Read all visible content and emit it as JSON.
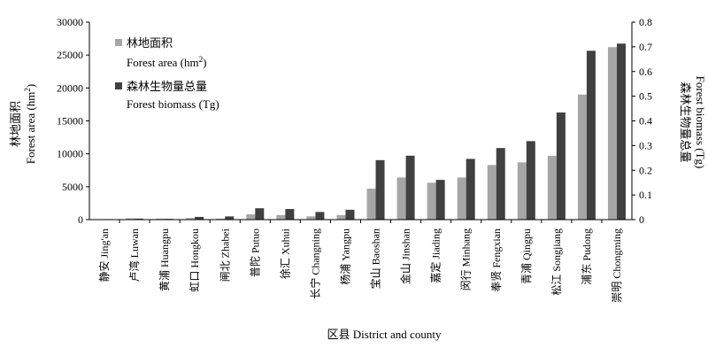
{
  "chart_data": {
    "type": "bar",
    "xlabel": "区县 District and county",
    "ylabel_left": [
      "林地面积",
      "Forest area (hm²)"
    ],
    "ylabel_right": [
      "森林生物量总量",
      "Forest biomass (Tg)"
    ],
    "ylim_left": [
      0,
      30000
    ],
    "yticks_left": [
      "0",
      "5000",
      "10000",
      "15000",
      "20000",
      "25000",
      "30000"
    ],
    "ylim_right": [
      0,
      0.8
    ],
    "yticks_right": [
      "0",
      "0.1",
      "0.2",
      "0.3",
      "0.4",
      "0.5",
      "0.6",
      "0.7",
      "0.8"
    ],
    "grid": false,
    "legend_position": "top-left",
    "categories": [
      "静安 Jing'an",
      "卢湾 Luwan",
      "黄浦 Huangpu",
      "虹口 Hongkou",
      "闸北 Zhabei",
      "普陀 Putuo",
      "徐汇 Xuhui",
      "长宁 Changning",
      "杨浦 Yangpu",
      "宝山 Baoshan",
      "金山 Jinshan",
      "嘉定 Jiading",
      "闵行 Minhang",
      "奉贤 Fengxian",
      "青浦 Qingpu",
      "松江 Songjiang",
      "浦东 Pudong",
      "崇明 Chongming"
    ],
    "series": [
      {
        "name": "林地面积",
        "name_en": "Forest area (hm²)",
        "axis": "left",
        "color": "#a6a6a6",
        "values": [
          20,
          200,
          150,
          250,
          150,
          800,
          700,
          500,
          700,
          4700,
          6400,
          5600,
          6400,
          8300,
          8700,
          9700,
          19000,
          26200
        ]
      },
      {
        "name": "森林生物量总量",
        "name_en": "Forest biomass (Tg)",
        "axis": "right",
        "color": "#404040",
        "values": [
          0.002,
          0.004,
          0.003,
          0.011,
          0.013,
          0.046,
          0.043,
          0.031,
          0.04,
          0.241,
          0.259,
          0.161,
          0.246,
          0.29,
          0.318,
          0.434,
          0.684,
          0.713
        ]
      }
    ]
  }
}
